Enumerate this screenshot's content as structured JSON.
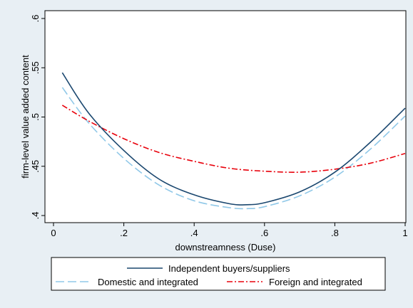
{
  "chart_data": {
    "type": "line",
    "title": "",
    "xlabel": "downstreamness (Duse)",
    "ylabel": "firm-level value added content",
    "xlim": [
      0,
      1
    ],
    "ylim": [
      0.395,
      0.605
    ],
    "x_ticks": [
      0,
      0.2,
      0.4,
      0.6,
      0.8,
      1
    ],
    "x_tick_labels": [
      "0",
      ".2",
      ".4",
      ".6",
      ".8",
      "1"
    ],
    "y_ticks": [
      0.4,
      0.45,
      0.5,
      0.55,
      0.6
    ],
    "y_tick_labels": [
      ".4",
      ".45",
      ".5",
      ".55",
      ".6"
    ],
    "grid": false,
    "legend_position": "bottom",
    "series": [
      {
        "name": "Independent buyers/suppliers",
        "color": "#1a476f",
        "dash": "solid",
        "x": [
          0.025,
          0.1,
          0.2,
          0.3,
          0.4,
          0.5,
          0.55,
          0.6,
          0.7,
          0.8,
          0.9,
          1.0
        ],
        "y": [
          0.545,
          0.504,
          0.466,
          0.437,
          0.421,
          0.412,
          0.411,
          0.413,
          0.424,
          0.444,
          0.474,
          0.509
        ]
      },
      {
        "name": "Domestic and integrated",
        "color": "#90c8e8",
        "dash": "long-dash",
        "x": [
          0.025,
          0.1,
          0.2,
          0.3,
          0.4,
          0.5,
          0.55,
          0.6,
          0.7,
          0.8,
          0.9,
          1.0
        ],
        "y": [
          0.53,
          0.494,
          0.458,
          0.431,
          0.415,
          0.408,
          0.407,
          0.409,
          0.42,
          0.439,
          0.467,
          0.501
        ]
      },
      {
        "name": "Foreign and integrated",
        "color": "#e8000b",
        "dash": "dash-dot",
        "x": [
          0.025,
          0.1,
          0.2,
          0.3,
          0.4,
          0.5,
          0.6,
          0.7,
          0.8,
          0.9,
          1.0
        ],
        "y": [
          0.512,
          0.496,
          0.478,
          0.464,
          0.455,
          0.448,
          0.445,
          0.444,
          0.447,
          0.453,
          0.463
        ]
      }
    ]
  }
}
